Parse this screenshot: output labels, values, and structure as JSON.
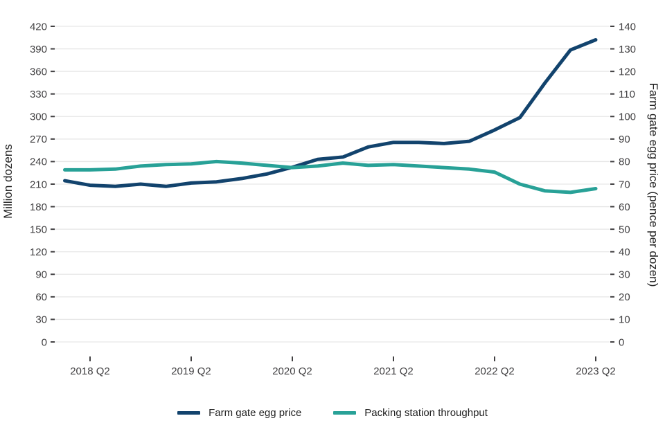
{
  "chart_data": {
    "type": "line",
    "x": [
      "2018 Q1",
      "2018 Q2",
      "2018 Q3",
      "2018 Q4",
      "2019 Q1",
      "2019 Q2",
      "2019 Q3",
      "2019 Q4",
      "2020 Q1",
      "2020 Q2",
      "2020 Q3",
      "2020 Q4",
      "2021 Q1",
      "2021 Q2",
      "2021 Q3",
      "2021 Q4",
      "2022 Q1",
      "2022 Q2",
      "2022 Q3",
      "2022 Q4",
      "2023 Q1",
      "2023 Q2"
    ],
    "x_tick_labels": [
      "2018 Q2",
      "2019 Q2",
      "2020 Q2",
      "2021 Q2",
      "2022 Q2",
      "2023 Q2"
    ],
    "left_axis": {
      "label": "Million dozens",
      "min": 0,
      "max": 420,
      "step": 30,
      "ticks": [
        0,
        30,
        60,
        90,
        120,
        150,
        180,
        210,
        240,
        270,
        300,
        330,
        360,
        390,
        420
      ]
    },
    "right_axis": {
      "label": "Farm gate egg price (pence per dozen)",
      "min": 0,
      "max": 140,
      "step": 10,
      "ticks": [
        0,
        10,
        20,
        30,
        40,
        50,
        60,
        70,
        80,
        90,
        100,
        110,
        120,
        130,
        140
      ]
    },
    "series": [
      {
        "name": "Farm gate egg price",
        "axis": "right",
        "color": "#12436D",
        "values": [
          71.5,
          69.5,
          69,
          70,
          69,
          70.5,
          71,
          72.5,
          74.5,
          77.5,
          81,
          82,
          86.5,
          88.5,
          88.5,
          88,
          89,
          94,
          99.5,
          115,
          129.5,
          134
        ]
      },
      {
        "name": "Packing station throughput",
        "axis": "left",
        "color": "#28A197",
        "values": [
          229,
          229,
          230,
          234,
          236,
          237,
          240,
          238,
          235,
          232,
          234,
          238,
          235,
          236,
          234,
          232,
          230,
          226,
          210,
          201,
          199,
          204
        ]
      }
    ],
    "grid": true,
    "legend_position": "bottom"
  },
  "colors": {
    "grid": "#E6E6E6",
    "tick": "#414042",
    "text": "#222222",
    "background": "#FFFFFF",
    "series_price": "#12436D",
    "series_throughput": "#28A197"
  }
}
